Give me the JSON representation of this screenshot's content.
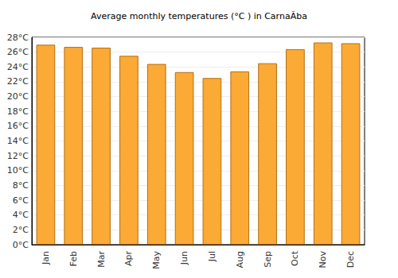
{
  "chart_data": {
    "type": "bar",
    "title": "Average monthly temperatures (°C ) in CarnaÃ­ba",
    "categories": [
      "Jan",
      "Feb",
      "Mar",
      "Apr",
      "May",
      "Jun",
      "Jul",
      "Aug",
      "Sep",
      "Oct",
      "Nov",
      "Dec"
    ],
    "values": [
      27.0,
      26.7,
      26.6,
      25.5,
      24.4,
      23.3,
      22.5,
      23.4,
      24.5,
      26.4,
      27.3,
      27.2
    ],
    "color": "#fbaa36",
    "ylim": [
      0,
      28
    ],
    "yticks": [
      {
        "value": 0,
        "label": "0°C"
      },
      {
        "value": 2,
        "label": "2°C"
      },
      {
        "value": 4,
        "label": "4°C"
      },
      {
        "value": 6,
        "label": "6°C"
      },
      {
        "value": 8,
        "label": "8°C"
      },
      {
        "value": 10,
        "label": "10°C"
      },
      {
        "value": 12,
        "label": "12°C"
      },
      {
        "value": 14,
        "label": "14°C"
      },
      {
        "value": 16,
        "label": "16°C"
      },
      {
        "value": 18,
        "label": "18°C"
      },
      {
        "value": 20,
        "label": "20°C"
      },
      {
        "value": 22,
        "label": "22°C"
      },
      {
        "value": 24,
        "label": "24°C"
      },
      {
        "value": 26,
        "label": "26°C"
      },
      {
        "value": 28,
        "label": "28°C"
      }
    ],
    "grid": true
  }
}
